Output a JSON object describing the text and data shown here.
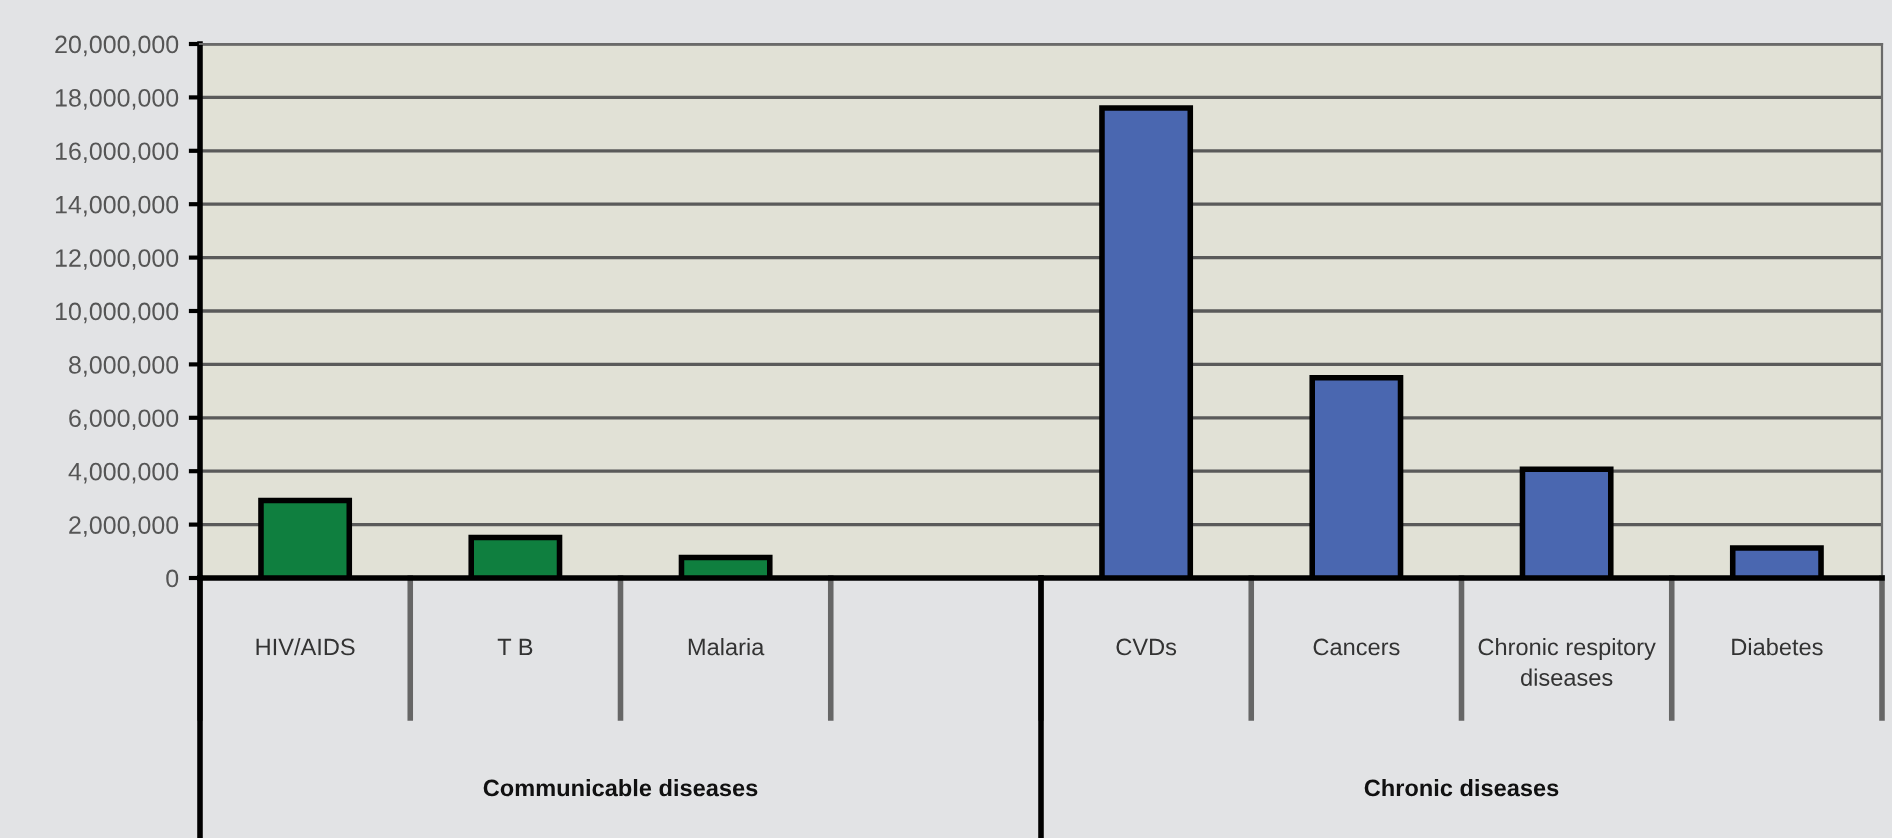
{
  "chart_data": {
    "type": "bar",
    "categories": [
      "HIV/AIDS",
      "T B",
      "Malaria",
      null,
      "CVDs",
      "Cancers",
      "Chronic respitory diseases",
      "Diabetes"
    ],
    "values": [
      2900000,
      1520000,
      770000,
      null,
      17600000,
      7500000,
      4070000,
      1120000
    ],
    "colors": [
      "#0f7f3f",
      "#0f7f3f",
      "#0f7f3f",
      "#0f7f3f",
      "#4a67b0",
      "#4a67b0",
      "#4a67b0",
      "#4a67b0"
    ],
    "ylim": [
      0,
      20000000
    ],
    "yticks": [
      {
        "value": 0,
        "label": "0"
      },
      {
        "value": 2000000,
        "label": "2,000,000"
      },
      {
        "value": 4000000,
        "label": "4,000,000"
      },
      {
        "value": 6000000,
        "label": "6,000,000"
      },
      {
        "value": 8000000,
        "label": "8,000,000"
      },
      {
        "value": 10000000,
        "label": "10,000,000"
      },
      {
        "value": 12000000,
        "label": "12,000,000"
      },
      {
        "value": 14000000,
        "label": "14,000,000"
      },
      {
        "value": 16000000,
        "label": "16,000,000"
      },
      {
        "value": 18000000,
        "label": "18,000,000"
      },
      {
        "value": 20000000,
        "label": "20,000,000"
      }
    ],
    "grid": "y",
    "annotations": [
      "Communicable diseases",
      "Chronic diseases"
    ]
  }
}
